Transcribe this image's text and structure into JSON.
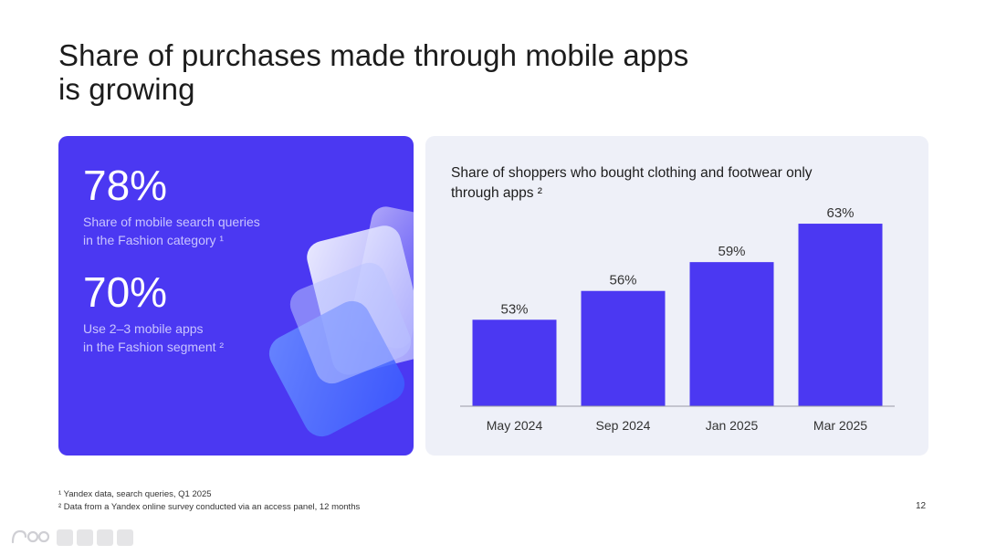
{
  "title": {
    "line1": "Share of purchases made through mobile apps",
    "line2": "is growing"
  },
  "stats": [
    {
      "value": "78%",
      "desc_line1": "Share of mobile search queries",
      "desc_line2": "in the Fashion category ¹"
    },
    {
      "value": "70%",
      "desc_line1": "Use 2–3 mobile apps",
      "desc_line2": "in the Fashion segment ²"
    }
  ],
  "chart_data": {
    "type": "bar",
    "title_line1": "Share of shoppers who bought clothing and footwear only",
    "title_line2": "through apps ²",
    "categories": [
      "May 2024",
      "Sep 2024",
      "Jan 2025",
      "Mar 2025"
    ],
    "values": [
      53,
      56,
      59,
      63
    ],
    "value_labels": [
      "53%",
      "56%",
      "59%",
      "63%"
    ],
    "ylim": [
      44,
      65
    ],
    "grid": false,
    "legend": "none",
    "bar_color": "#4b38f2"
  },
  "footnotes": {
    "line1": "¹ Yandex data, search queries, Q1 2025",
    "line2": "² Data from a Yandex online survey conducted via an access panel, 12 months"
  },
  "page_number": "12",
  "colors": {
    "accent": "#4b38f2",
    "card_bg": "#eef0f8"
  }
}
